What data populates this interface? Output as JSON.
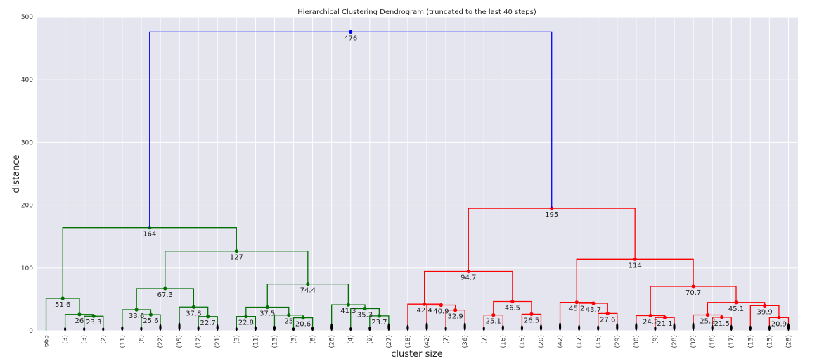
{
  "chart_data": {
    "type": "dendrogram",
    "title": "Hierarchical Clustering Dendrogram (truncated to the last 40 steps)",
    "xlabel": "cluster size",
    "ylabel": "distance",
    "ylim": [
      0,
      500
    ],
    "yticks": [
      0,
      100,
      200,
      300,
      400,
      500
    ],
    "grid": true,
    "leaves": [
      "663",
      "(3)",
      "(3)",
      "(2)",
      "(11)",
      "(6)",
      "(22)",
      "(35)",
      "(12)",
      "(21)",
      "(3)",
      "(11)",
      "(13)",
      "(3)",
      "(8)",
      "(26)",
      "(4)",
      "(9)",
      "(27)",
      "(18)",
      "(42)",
      "(7)",
      "(36)",
      "(7)",
      "(16)",
      "(15)",
      "(20)",
      "(42)",
      "(17)",
      "(15)",
      "(29)",
      "(30)",
      "(9)",
      "(28)",
      "(32)",
      "(18)",
      "(17)",
      "(13)",
      "(15)",
      "(28)"
    ],
    "merges": [
      {
        "left": "L2",
        "right": "L3",
        "height": 23.3,
        "label": "23.3",
        "color": "#007000"
      },
      {
        "left": "L1",
        "right": "M0",
        "height": 26,
        "label": "26",
        "color": "#007000"
      },
      {
        "left": "L0",
        "right": "M1",
        "height": 51.6,
        "label": "51.6",
        "color": "#007000"
      },
      {
        "left": "L5",
        "right": "L6",
        "height": 25.6,
        "label": "25.6",
        "color": "#007000"
      },
      {
        "left": "L4",
        "right": "M3",
        "height": 33.6,
        "label": "33.6",
        "color": "#007000"
      },
      {
        "left": "L8",
        "right": "L9",
        "height": 22.7,
        "label": "22.7",
        "color": "#007000"
      },
      {
        "left": "L7",
        "right": "M5",
        "height": 37.8,
        "label": "37.8",
        "color": "#007000"
      },
      {
        "left": "M4",
        "right": "M6",
        "height": 67.3,
        "label": "67.3",
        "color": "#007000"
      },
      {
        "left": "L10",
        "right": "L11",
        "height": 22.8,
        "label": "22.8",
        "color": "#007000"
      },
      {
        "left": "L13",
        "right": "L14",
        "height": 20.6,
        "label": "20.6",
        "color": "#007000"
      },
      {
        "left": "L12",
        "right": "M9",
        "height": 25,
        "label": "25",
        "color": "#007000"
      },
      {
        "left": "M8",
        "right": "M10",
        "height": 37.5,
        "label": "37.5",
        "color": "#007000"
      },
      {
        "left": "L17",
        "right": "L18",
        "height": 23.7,
        "label": "23.7",
        "color": "#007000"
      },
      {
        "left": "L16",
        "right": "M12",
        "height": 35.3,
        "label": "35.3",
        "color": "#007000"
      },
      {
        "left": "L15",
        "right": "M13",
        "height": 41.3,
        "label": "41.3",
        "color": "#007000"
      },
      {
        "left": "M11",
        "right": "M14",
        "height": 74.4,
        "label": "74.4",
        "color": "#007000"
      },
      {
        "left": "M7",
        "right": "M15",
        "height": 127,
        "label": "127",
        "color": "#007000"
      },
      {
        "left": "M2",
        "right": "M16",
        "height": 164,
        "label": "164",
        "color": "#007000"
      },
      {
        "left": "L21",
        "right": "L22",
        "height": 32.9,
        "label": "32.9",
        "color": "#ff0000"
      },
      {
        "left": "L20",
        "right": "M18",
        "height": 40.9,
        "label": "40.9",
        "color": "#ff0000"
      },
      {
        "left": "L19",
        "right": "M19",
        "height": 42.4,
        "label": "42.4",
        "color": "#ff0000"
      },
      {
        "left": "L23",
        "right": "L24",
        "height": 25.1,
        "label": "25.1",
        "color": "#ff0000"
      },
      {
        "left": "L25",
        "right": "L26",
        "height": 26.5,
        "label": "26.5",
        "color": "#ff0000"
      },
      {
        "left": "M21",
        "right": "M22",
        "height": 46.5,
        "label": "46.5",
        "color": "#ff0000"
      },
      {
        "left": "M20",
        "right": "M23",
        "height": 94.7,
        "label": "94.7",
        "color": "#ff0000"
      },
      {
        "left": "L29",
        "right": "L30",
        "height": 27.6,
        "label": "27.6",
        "color": "#ff0000"
      },
      {
        "left": "L28",
        "right": "M25",
        "height": 43.7,
        "label": "43.7",
        "color": "#ff0000"
      },
      {
        "left": "L27",
        "right": "M26",
        "height": 45.2,
        "label": "45.2",
        "color": "#ff0000"
      },
      {
        "left": "L32",
        "right": "L33",
        "height": 21.1,
        "label": "21.1",
        "color": "#ff0000"
      },
      {
        "left": "L31",
        "right": "M28",
        "height": 24.2,
        "label": "24.2",
        "color": "#ff0000"
      },
      {
        "left": "L35",
        "right": "L36",
        "height": 21.5,
        "label": "21.5",
        "color": "#ff0000"
      },
      {
        "left": "L34",
        "right": "M30",
        "height": 25.2,
        "label": "25.2",
        "color": "#ff0000"
      },
      {
        "left": "L38",
        "right": "L39",
        "height": 20.9,
        "label": "20.9",
        "color": "#ff0000"
      },
      {
        "left": "L37",
        "right": "M32",
        "height": 39.9,
        "label": "39.9",
        "color": "#ff0000"
      },
      {
        "left": "M31",
        "right": "M33",
        "height": 45.1,
        "label": "45.1",
        "color": "#ff0000"
      },
      {
        "left": "M29",
        "right": "M34",
        "height": 70.7,
        "label": "70.7",
        "color": "#ff0000"
      },
      {
        "left": "M27",
        "right": "M35",
        "height": 114,
        "label": "114",
        "color": "#ff0000"
      },
      {
        "left": "M24",
        "right": "M36",
        "height": 195,
        "label": "195",
        "color": "#ff0000"
      },
      {
        "left": "M17",
        "right": "M37",
        "height": 476,
        "label": "476",
        "color": "#0000ff"
      }
    ],
    "leaf_marker_color": "#000000"
  }
}
